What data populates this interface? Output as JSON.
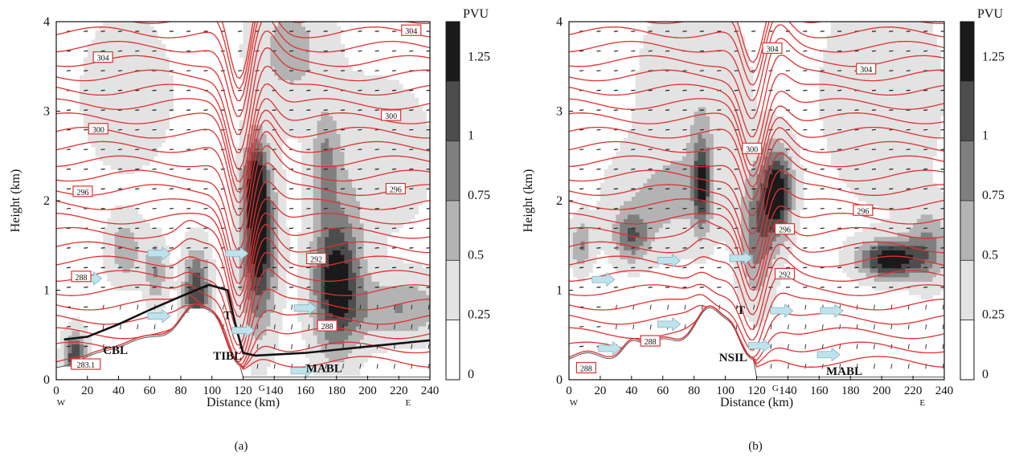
{
  "chart_data": [
    {
      "type": "heatmap",
      "panel_label": "(a)",
      "xlabel": "Distance (km)",
      "ylabel": "Height (km)",
      "xlim": [
        0,
        240
      ],
      "ylim": [
        0,
        4
      ],
      "x_ticks": [
        0,
        20,
        40,
        60,
        80,
        100,
        120,
        140,
        160,
        180,
        200,
        220,
        240
      ],
      "y_ticks": [
        0,
        1,
        2,
        3,
        4
      ],
      "x_markers": [
        {
          "x": 0,
          "label": "W"
        },
        {
          "x": 132,
          "label": "G"
        },
        {
          "x": 226,
          "label": "E"
        }
      ],
      "colorbar": {
        "unit": "PVU",
        "levels": [
          "1.25",
          "1",
          "0.75",
          "0.5",
          "0.25",
          "0"
        ],
        "colors": [
          "#1a1a1a",
          "#4d4d4d",
          "#7f7f7f",
          "#b3b3b3",
          "#e3e3e3",
          "#ffffff"
        ]
      },
      "theta_contour_color": "#e23030",
      "theta_labels": [
        {
          "text": "304",
          "x": 30,
          "y": 3.6
        },
        {
          "text": "304",
          "x": 228,
          "y": 3.9
        },
        {
          "text": "300",
          "x": 27,
          "y": 2.8
        },
        {
          "text": "300",
          "x": 215,
          "y": 2.95
        },
        {
          "text": "296",
          "x": 17,
          "y": 2.1
        },
        {
          "text": "296",
          "x": 218,
          "y": 2.13
        },
        {
          "text": "292",
          "x": 167,
          "y": 1.35
        },
        {
          "text": "288",
          "x": 16,
          "y": 1.15
        },
        {
          "text": "288",
          "x": 174,
          "y": 0.6
        },
        {
          "text": "283.1",
          "x": 19,
          "y": 0.17
        }
      ],
      "annotations": [
        {
          "text": "CBL",
          "x": 38,
          "y": 0.33
        },
        {
          "text": "TIBL",
          "x": 110,
          "y": 0.27
        },
        {
          "text": "MABL",
          "x": 172,
          "y": 0.13
        },
        {
          "text": "T",
          "x": 110,
          "y": 0.72
        }
      ],
      "black_boundary": [
        [
          5,
          0.45
        ],
        [
          20,
          0.48
        ],
        [
          40,
          0.62
        ],
        [
          60,
          0.78
        ],
        [
          80,
          0.93
        ],
        [
          98,
          1.06
        ],
        [
          110,
          1.0
        ],
        [
          116,
          0.55
        ],
        [
          120,
          0.3
        ],
        [
          128,
          0.27
        ],
        [
          160,
          0.3
        ],
        [
          200,
          0.37
        ],
        [
          240,
          0.44
        ]
      ],
      "wind_arrows": [
        {
          "x": 22,
          "y": 1.13
        },
        {
          "x": 66,
          "y": 1.41
        },
        {
          "x": 66,
          "y": 0.71
        },
        {
          "x": 116,
          "y": 1.41
        },
        {
          "x": 120,
          "y": 0.55
        },
        {
          "x": 160,
          "y": 0.8
        },
        {
          "x": 158,
          "y": 0.1
        }
      ]
    },
    {
      "type": "heatmap",
      "panel_label": "(b)",
      "xlabel": "Distance (km)",
      "ylabel": "Height (km)",
      "xlim": [
        0,
        240
      ],
      "ylim": [
        0,
        4
      ],
      "x_ticks": [
        0,
        20,
        40,
        60,
        80,
        100,
        120,
        140,
        160,
        180,
        200,
        220,
        240
      ],
      "y_ticks": [
        0,
        1,
        2,
        3,
        4
      ],
      "x_markers": [
        {
          "x": 0,
          "label": "W"
        },
        {
          "x": 132,
          "label": "G"
        },
        {
          "x": 226,
          "label": "E"
        }
      ],
      "colorbar": {
        "unit": "PVU",
        "levels": [
          "1.25",
          "1",
          "0.75",
          "0.5",
          "0.25",
          "0"
        ],
        "colors": [
          "#1a1a1a",
          "#4d4d4d",
          "#7f7f7f",
          "#b3b3b3",
          "#e3e3e3",
          "#ffffff"
        ]
      },
      "theta_contour_color": "#e23030",
      "theta_labels": [
        {
          "text": "304",
          "x": 130,
          "y": 3.7
        },
        {
          "text": "304",
          "x": 190,
          "y": 3.47
        },
        {
          "text": "300",
          "x": 117,
          "y": 2.58
        },
        {
          "text": "296",
          "x": 138,
          "y": 1.68
        },
        {
          "text": "296",
          "x": 188,
          "y": 1.89
        },
        {
          "text": "292",
          "x": 138,
          "y": 1.18
        },
        {
          "text": "288",
          "x": 11,
          "y": 0.13
        },
        {
          "text": "288",
          "x": 52,
          "y": 0.43
        }
      ],
      "annotations": [
        {
          "text": "NSIL",
          "x": 105,
          "y": 0.25
        },
        {
          "text": "MABL",
          "x": 176,
          "y": 0.1
        },
        {
          "text": "T",
          "x": 110,
          "y": 0.78
        }
      ],
      "black_boundary": [],
      "wind_arrows": [
        {
          "x": 22,
          "y": 1.12
        },
        {
          "x": 26,
          "y": 0.35
        },
        {
          "x": 64,
          "y": 1.33
        },
        {
          "x": 64,
          "y": 0.62
        },
        {
          "x": 110,
          "y": 1.36
        },
        {
          "x": 136,
          "y": 0.77
        },
        {
          "x": 168,
          "y": 0.77
        },
        {
          "x": 166,
          "y": 0.28
        },
        {
          "x": 122,
          "y": 0.38
        }
      ]
    }
  ]
}
